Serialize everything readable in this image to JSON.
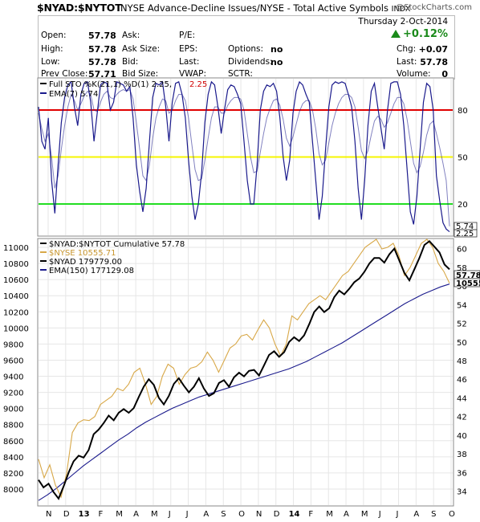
{
  "header": {
    "symbol": "$NYAD:$NYTOT",
    "description": "NYSE Advance-Decline Issues/NYSE - Total Active Symbols",
    "exchange": "INDX",
    "watermark": "@StockCharts.com"
  },
  "quote": {
    "date": "Thursday  2-Oct-2014",
    "pct_change": "+0.12%",
    "fields": {
      "open_label": "Open:",
      "open": "57.78",
      "high_label": "High:",
      "high": "57.78",
      "low_label": "Low:",
      "low": "57.78",
      "prev_label": "Prev Close:",
      "prev": "57.71",
      "ask_label": "Ask:",
      "ask_size_label": "Ask Size:",
      "bid_label": "Bid:",
      "bid_size_label": "Bid Size:",
      "pe_label": "P/E:",
      "eps_label": "EPS:",
      "last_label": "Last:",
      "vwap_label": "VWAP:",
      "options_label": "Options:",
      "options": "no",
      "dividends_label": "Dividends:",
      "dividends": "no",
      "sctr_label": "SCTR:",
      "chg_label": "Chg:",
      "chg": "+0.07",
      "last2_label": "Last:",
      "last": "57.78",
      "volume_label": "Volume:",
      "volume": "0"
    }
  },
  "colors": {
    "sto_line": "#1a1a8c",
    "ref80": "#e00000",
    "ref50": "#f5f500",
    "ref20": "#22dd22",
    "main_line": "#000000",
    "nyse_line": "#d8a848",
    "ema_line": "#1a1a8c",
    "sto_d_value": "#d00000"
  },
  "chart_data": [
    {
      "type": "line",
      "title": "Full STO %K(21,1) %D(1) 2.25, 2.25",
      "legend": [
        {
          "name": "Full STO %K(21,1) %D(1) 2.25,",
          "value": "2.25"
        },
        {
          "name": "EMA(7) 5.74"
        }
      ],
      "ylim": [
        0,
        100
      ],
      "yticks": [
        "80",
        "50",
        "20"
      ],
      "reference_lines": [
        80,
        50,
        20
      ],
      "last_value_labels": [
        "5.74",
        "2.25"
      ],
      "series": [
        {
          "name": "Full STO %K(21,1) %D(1)",
          "values": [
            82,
            60,
            55,
            75,
            35,
            14,
            45,
            72,
            88,
            96,
            98,
            82,
            70,
            90,
            97,
            98,
            85,
            60,
            78,
            96,
            98,
            97,
            80,
            85,
            98,
            97,
            96,
            92,
            95,
            75,
            45,
            28,
            15,
            30,
            60,
            88,
            97,
            96,
            98,
            82,
            60,
            85,
            97,
            98,
            90,
            75,
            48,
            25,
            10,
            20,
            40,
            72,
            90,
            98,
            96,
            82,
            65,
            80,
            93,
            96,
            95,
            90,
            84,
            60,
            35,
            20,
            20,
            45,
            80,
            92,
            96,
            95,
            97,
            92,
            75,
            50,
            35,
            48,
            78,
            92,
            98,
            96,
            90,
            85,
            60,
            35,
            10,
            25,
            55,
            82,
            96,
            98,
            97,
            98,
            97,
            90,
            82,
            60,
            30,
            10,
            35,
            70,
            92,
            97,
            82,
            68,
            55,
            80,
            97,
            98,
            98,
            90,
            70,
            42,
            15,
            7,
            25,
            55,
            85,
            97,
            95,
            80,
            38,
            22,
            8,
            4,
            2.25
          ]
        },
        {
          "name": "EMA(7)",
          "values": [
            78,
            68,
            60,
            65,
            50,
            30,
            38,
            55,
            70,
            82,
            90,
            86,
            80,
            84,
            89,
            92,
            90,
            80,
            79,
            85,
            90,
            92,
            88,
            87,
            90,
            92,
            93,
            92,
            93,
            87,
            72,
            55,
            38,
            35,
            45,
            62,
            75,
            82,
            87,
            86,
            78,
            80,
            86,
            90,
            90,
            86,
            75,
            58,
            42,
            35,
            36,
            48,
            62,
            75,
            82,
            82,
            78,
            78,
            83,
            86,
            88,
            88,
            87,
            80,
            65,
            50,
            40,
            41,
            53,
            65,
            75,
            81,
            86,
            87,
            83,
            74,
            62,
            57,
            63,
            71,
            79,
            84,
            86,
            86,
            80,
            68,
            52,
            45,
            48,
            59,
            70,
            78,
            84,
            88,
            90,
            90,
            88,
            82,
            69,
            54,
            49,
            54,
            64,
            73,
            76,
            74,
            69,
            72,
            78,
            84,
            88,
            88,
            84,
            74,
            60,
            46,
            40,
            44,
            53,
            64,
            71,
            73,
            65,
            56,
            46,
            35,
            5.74
          ]
        }
      ],
      "xlabels": [
        "N",
        "D",
        "13",
        "F",
        "M",
        "A",
        "M",
        "J",
        "J",
        "A",
        "S",
        "O",
        "N",
        "D",
        "14",
        "F",
        "M",
        "A",
        "M",
        "J",
        "J",
        "A",
        "S",
        "O"
      ]
    },
    {
      "type": "line",
      "title": "$NYAD:$NYTOT Cumulative 57.78",
      "legend": [
        {
          "name": "$NYAD:$NYTOT Cumulative 57.78"
        },
        {
          "name": "$NYSE 10555.71"
        },
        {
          "name": "$NYAD 179779.00"
        },
        {
          "name": "EMA(150) 177129.08"
        }
      ],
      "left_yticks": [
        "11000",
        "10800",
        "10600",
        "10400",
        "10200",
        "10000",
        "9800",
        "9600",
        "9400",
        "9200",
        "9000",
        "8800",
        "8600",
        "8400",
        "8200",
        "8000"
      ],
      "right_yticks": [
        "60",
        "58",
        "56",
        "54",
        "52",
        "50",
        "48",
        "46",
        "44",
        "42",
        "40",
        "38",
        "36",
        "34"
      ],
      "left_ylim": [
        7800,
        11100
      ],
      "right_ylim": [
        32.5,
        61
      ],
      "last_value_labels": [
        "57.78",
        "10555"
      ],
      "xlabels": [
        "N",
        "D",
        "13",
        "F",
        "M",
        "A",
        "M",
        "J",
        "J",
        "A",
        "S",
        "O",
        "N",
        "D",
        "14",
        "F",
        "M",
        "A",
        "M",
        "J",
        "J",
        "A",
        "S",
        "O"
      ],
      "series": [
        {
          "name": "$NYAD:$NYTOT Cumulative",
          "axis": "right",
          "values": [
            35.2,
            34.4,
            34.8,
            33.9,
            33.2,
            34.5,
            36.0,
            37.2,
            37.8,
            37.6,
            38.4,
            40.1,
            40.6,
            41.3,
            42.1,
            41.6,
            42.4,
            42.8,
            42.4,
            42.9,
            44.1,
            45.2,
            46.0,
            45.4,
            44.0,
            43.3,
            44.2,
            45.5,
            46.1,
            45.3,
            44.6,
            45.2,
            46.1,
            45.0,
            44.2,
            44.5,
            45.6,
            45.9,
            45.2,
            46.2,
            46.7,
            46.3,
            46.9,
            47.0,
            46.4,
            47.5,
            48.6,
            49.0,
            48.4,
            48.9,
            50.0,
            50.5,
            50.1,
            50.7,
            51.9,
            53.2,
            53.8,
            53.2,
            53.6,
            54.8,
            55.5,
            55.1,
            55.7,
            56.4,
            56.8,
            57.5,
            58.4,
            59.0,
            59.0,
            58.5,
            59.4,
            60.0,
            58.7,
            57.4,
            56.6,
            57.8,
            59.0,
            60.4,
            60.8,
            60.2,
            59.6,
            58.3,
            57.78
          ]
        },
        {
          "name": "$NYSE",
          "axis": "left",
          "values": [
            8370,
            8140,
            8300,
            8050,
            7900,
            8200,
            8700,
            8820,
            8860,
            8850,
            8900,
            9050,
            9100,
            9150,
            9250,
            9220,
            9300,
            9450,
            9500,
            9300,
            9050,
            9150,
            9400,
            9550,
            9500,
            9300,
            9420,
            9500,
            9520,
            9580,
            9700,
            9600,
            9450,
            9600,
            9750,
            9800,
            9900,
            9920,
            9850,
            9980,
            10100,
            10000,
            9800,
            9650,
            9800,
            10150,
            10100,
            10200,
            10300,
            10350,
            10400,
            10350,
            10450,
            10550,
            10650,
            10700,
            10800,
            10900,
            11000,
            11050,
            11100,
            10980,
            11000,
            11050,
            10900,
            10650,
            10750,
            10900,
            11050,
            11100,
            11000,
            10800,
            10700,
            10555.71
          ]
        },
        {
          "name": "EMA(150)",
          "axis": "right",
          "values": [
            33.0,
            33.6,
            34.3,
            35.1,
            35.9,
            36.7,
            37.4,
            38.1,
            38.8,
            39.5,
            40.1,
            40.8,
            41.4,
            41.9,
            42.4,
            42.9,
            43.3,
            43.7,
            44.1,
            44.4,
            44.7,
            45.0,
            45.3,
            45.6,
            45.9,
            46.2,
            46.5,
            46.8,
            47.1,
            47.5,
            47.9,
            48.4,
            48.9,
            49.4,
            49.9,
            50.5,
            51.1,
            51.7,
            52.3,
            52.9,
            53.5,
            54.1,
            54.6,
            55.1,
            55.5,
            55.9,
            56.2
          ]
        }
      ]
    }
  ]
}
